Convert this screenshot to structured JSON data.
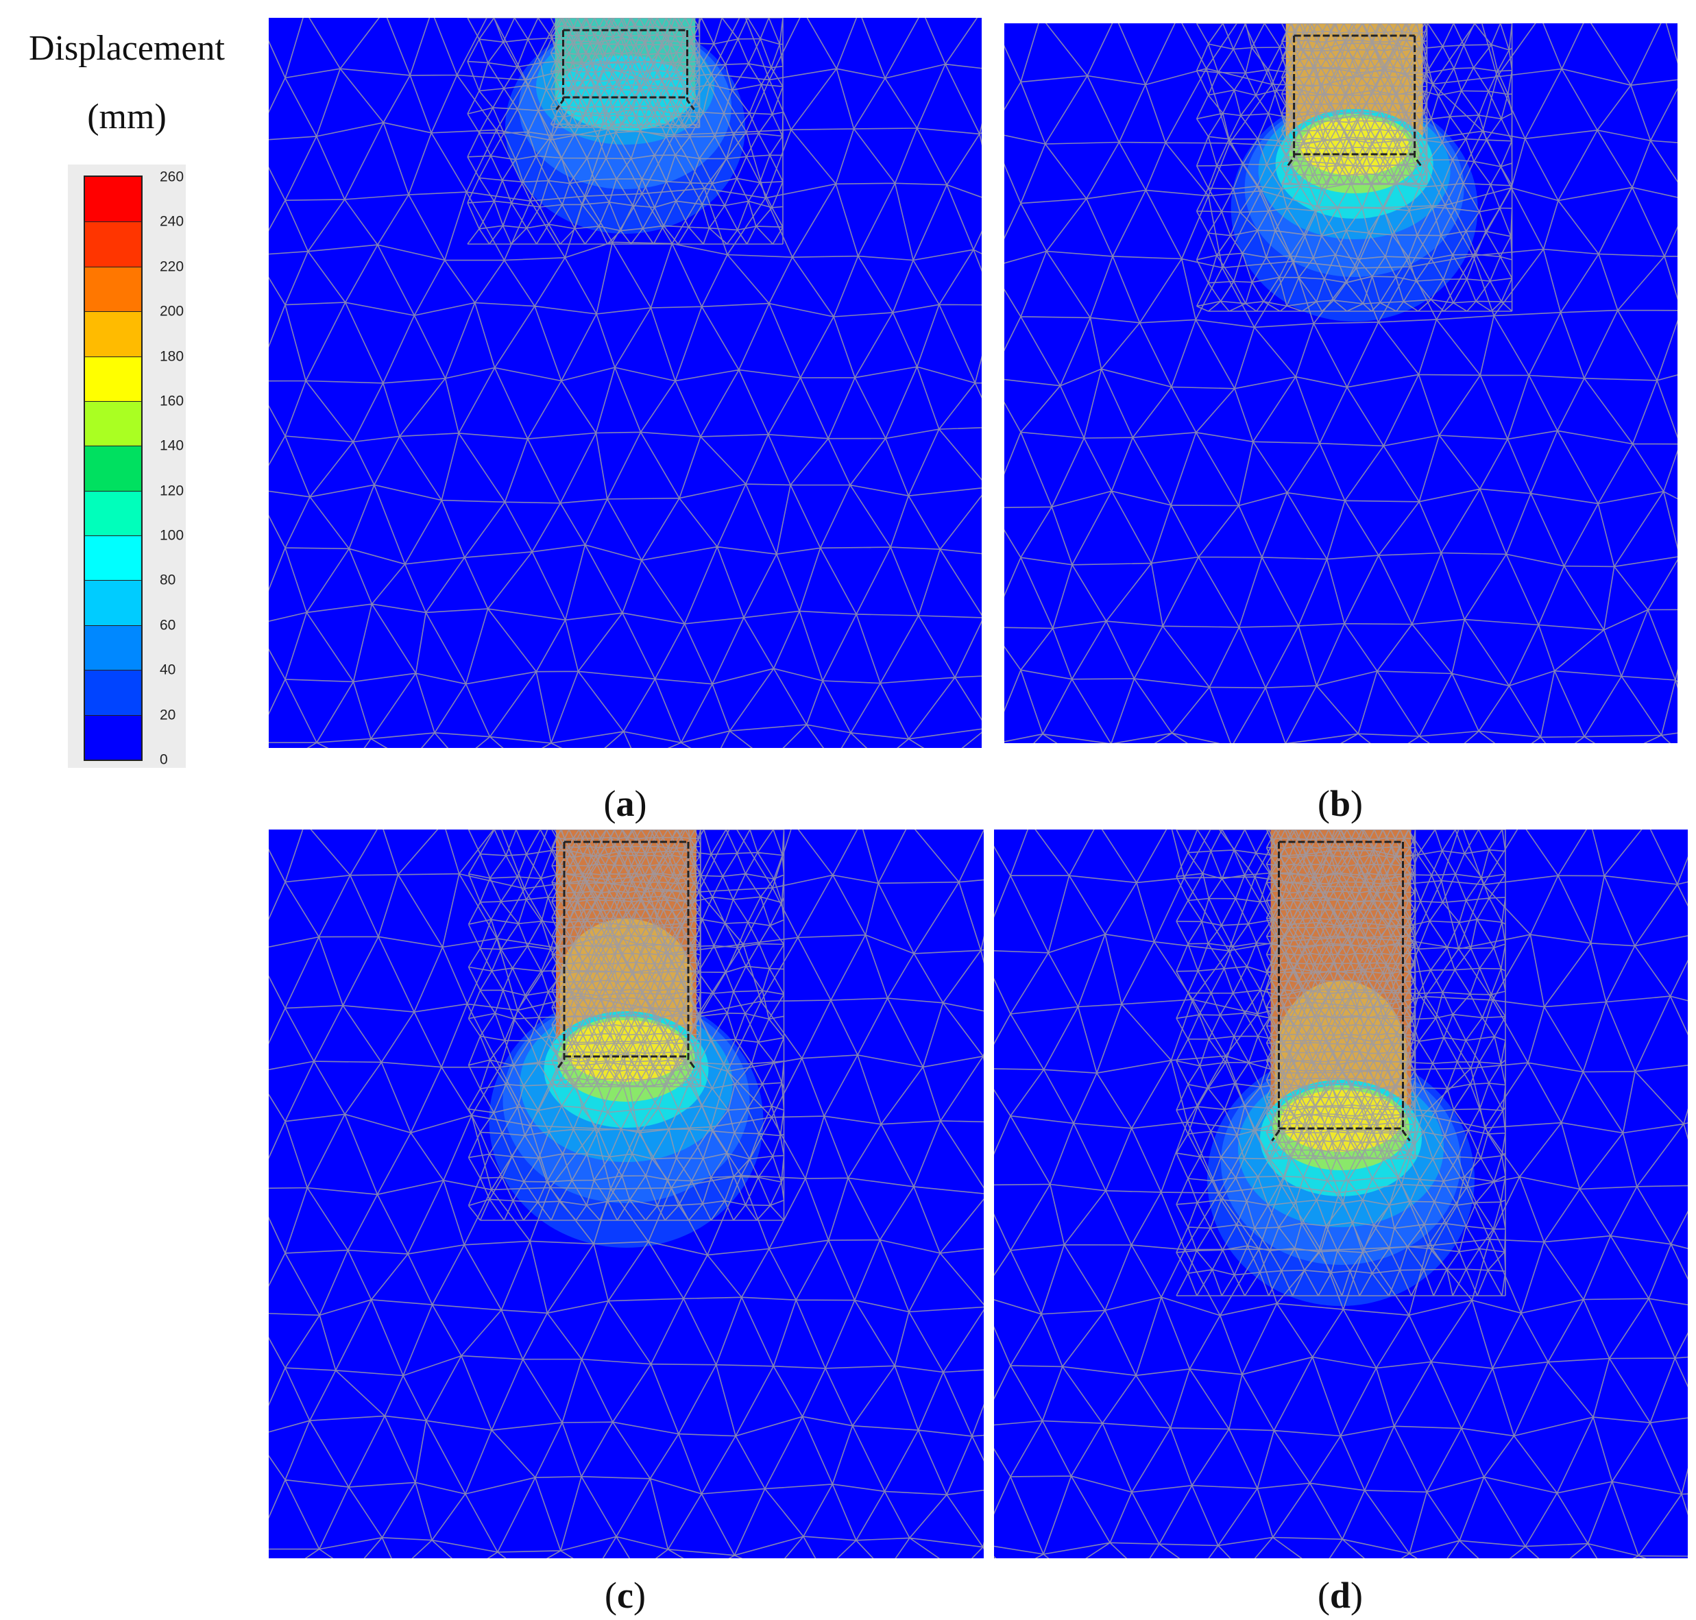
{
  "legend": {
    "title_line1": "Displacement",
    "title_line2": "(mm)",
    "ticks": [
      "260",
      "240",
      "220",
      "200",
      "180",
      "160",
      "140",
      "120",
      "100",
      "80",
      "60",
      "40",
      "20",
      "0"
    ],
    "colors": [
      "#ff0000",
      "#ff3500",
      "#ff7700",
      "#ffbb00",
      "#ffff00",
      "#aaff22",
      "#00e060",
      "#00ffbb",
      "#00ffff",
      "#00ccff",
      "#0088ff",
      "#0044ff",
      "#0000ff"
    ]
  },
  "panels": [
    {
      "label": "a",
      "open": "(",
      "close": ")"
    },
    {
      "label": "b",
      "open": "(",
      "close": ")"
    },
    {
      "label": "c",
      "open": "(",
      "close": ")"
    },
    {
      "label": "d",
      "open": "(",
      "close": ")"
    }
  ]
}
